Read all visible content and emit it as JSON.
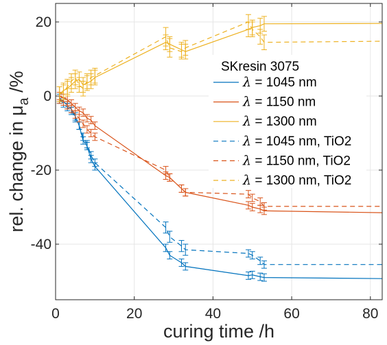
{
  "chart_data": {
    "type": "line",
    "xlabel": "curing time /h",
    "ylabel_main": "rel. change in μ",
    "ylabel_sub": "a",
    "ylabel_unit": " /%",
    "xlim": [
      0,
      83
    ],
    "ylim": [
      -55,
      25
    ],
    "x_ticks": [
      0,
      20,
      40,
      60,
      80
    ],
    "y_ticks": [
      -40,
      -20,
      0,
      20
    ],
    "grid": true,
    "legend_position": "center-right",
    "legend_title": "SKresin 3075",
    "lambda_symbol": "λ",
    "series": [
      {
        "name": " = 1045 nm",
        "color": "#0072BD",
        "dash": "solid",
        "x": [
          1,
          2,
          3,
          4,
          5,
          6,
          7,
          8,
          9,
          10,
          28,
          29,
          32,
          33,
          49,
          50,
          52,
          53,
          83
        ],
        "y": [
          -0.5,
          -1.5,
          -2.5,
          -3.5,
          -5.5,
          -8,
          -12,
          -13.5,
          -17,
          -19,
          -41,
          -43,
          -45,
          -46,
          -48.5,
          -48.3,
          -48.8,
          -49,
          -49.3
        ],
        "err": [
          1,
          1,
          1,
          1,
          1,
          1,
          1,
          1,
          1,
          1,
          1,
          1,
          1,
          1,
          1,
          1,
          1,
          1,
          0
        ]
      },
      {
        "name": " = 1150 nm",
        "color": "#D95319",
        "dash": "solid",
        "x": [
          1,
          2,
          3,
          4,
          5,
          6,
          7,
          8,
          9,
          10,
          28,
          29,
          32,
          33,
          49,
          50,
          52,
          53,
          83
        ],
        "y": [
          0,
          -0.5,
          -1,
          -2,
          -3,
          -4,
          -4.5,
          -6,
          -6.5,
          -8,
          -21.5,
          -22,
          -25,
          -26,
          -29.5,
          -30,
          -30.5,
          -31,
          -31.5
        ],
        "err": [
          1,
          1,
          1,
          1,
          1,
          1,
          1,
          1,
          1,
          1,
          1,
          1,
          1,
          1,
          1,
          1,
          1,
          1,
          0
        ]
      },
      {
        "name": " = 1300 nm",
        "color": "#EDB120",
        "dash": "solid",
        "x": [
          1,
          2,
          3,
          4,
          5,
          6,
          7,
          8,
          9,
          10,
          28,
          29,
          32,
          33,
          49,
          50,
          52,
          53,
          83
        ],
        "y": [
          0.5,
          1.5,
          2,
          3,
          4,
          4.5,
          3,
          3.5,
          4,
          5,
          14.5,
          14,
          12.5,
          12,
          18,
          18.5,
          19,
          19.5,
          19.6
        ],
        "err": [
          2,
          2,
          2,
          2,
          2,
          2,
          2,
          2,
          2,
          2,
          2,
          2,
          2,
          2,
          2,
          2,
          2,
          2,
          0
        ]
      },
      {
        "name": " = 1045 nm, TiO2",
        "color": "#0072BD",
        "dash": "dashed",
        "x": [
          1,
          2,
          3,
          4,
          5,
          6,
          7,
          8,
          9,
          10,
          28,
          29,
          32,
          33,
          49,
          50,
          52,
          53,
          83
        ],
        "y": [
          -1,
          -2,
          -3,
          -4,
          -6,
          -8,
          -11,
          -13,
          -16,
          -18,
          -35.5,
          -38,
          -40.5,
          -41.5,
          -42.5,
          -43,
          -44.5,
          -45.5,
          -45.5
        ],
        "err": [
          1,
          1,
          1,
          1,
          1,
          1,
          1,
          1,
          1,
          1,
          1.5,
          1.5,
          1.5,
          1.5,
          1,
          1,
          1,
          1,
          0
        ]
      },
      {
        "name": " = 1150 nm, TiO2",
        "color": "#D95319",
        "dash": "dashed",
        "x": [
          1,
          2,
          3,
          4,
          5,
          6,
          7,
          8,
          9,
          10,
          28,
          29,
          32,
          33,
          49,
          50,
          52,
          53,
          83
        ],
        "y": [
          -1,
          -1.5,
          -2.5,
          -3.5,
          -5,
          -6,
          -7.5,
          -9,
          -10,
          -11,
          -20,
          -22,
          -25,
          -26,
          -26.5,
          -27.5,
          -28.5,
          -29.8,
          -29.8
        ],
        "err": [
          1,
          1,
          1,
          1,
          1,
          1,
          1,
          1,
          1,
          1,
          1,
          1,
          1,
          1,
          1,
          1,
          1,
          1,
          0
        ]
      },
      {
        "name": " = 1300 nm, TiO2",
        "color": "#EDB120",
        "dash": "dashed",
        "x": [
          1,
          2,
          3,
          4,
          5,
          6,
          7,
          8,
          9,
          10,
          28,
          29,
          32,
          33,
          49,
          50,
          52,
          53,
          83
        ],
        "y": [
          0.5,
          1,
          2.5,
          4,
          5,
          3,
          2,
          4,
          5,
          5.5,
          16,
          13,
          12,
          13,
          20,
          18,
          16,
          14.5,
          14.8
        ],
        "err": [
          2,
          2,
          2,
          2,
          2,
          2,
          2,
          2,
          2,
          2,
          2.5,
          2.5,
          2,
          2,
          2,
          2,
          2,
          2,
          0
        ]
      }
    ]
  }
}
